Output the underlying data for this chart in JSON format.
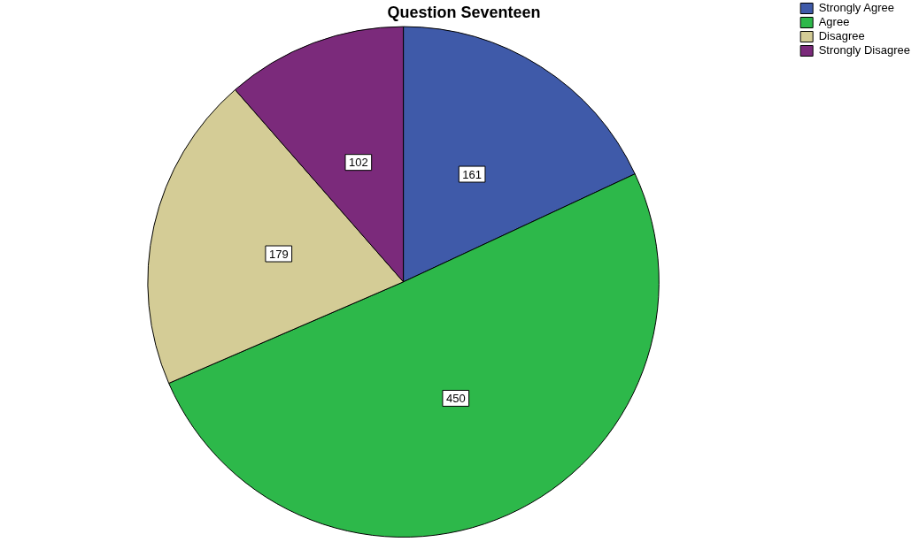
{
  "chart_data": {
    "type": "pie",
    "title": "Question Seventeen",
    "categories": [
      "Strongly Agree",
      "Agree",
      "Disagree",
      "Strongly Disagree"
    ],
    "values": [
      161,
      450,
      179,
      102
    ],
    "colors": [
      "#3f5aa9",
      "#2db84a",
      "#d4cc96",
      "#7b2a7b"
    ],
    "data_labels": true,
    "legend": "top right"
  }
}
